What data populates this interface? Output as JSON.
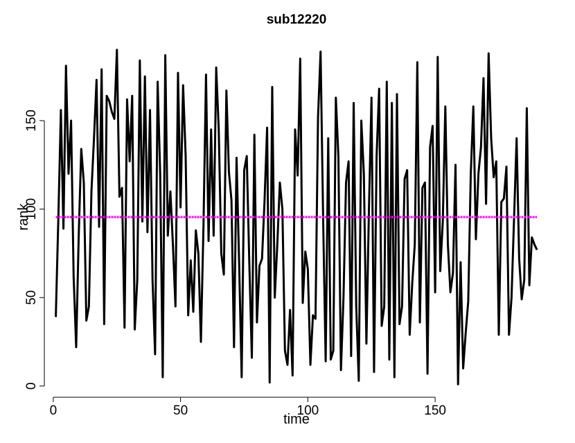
{
  "chart_data": {
    "type": "line",
    "title": "sub12220",
    "x_label": "time",
    "y_label": "rank",
    "x": [
      1,
      2,
      3,
      4,
      5,
      6,
      7,
      8,
      9,
      10,
      11,
      12,
      13,
      14,
      15,
      16,
      17,
      18,
      19,
      20,
      21,
      22,
      23,
      24,
      25,
      26,
      27,
      28,
      29,
      30,
      31,
      32,
      33,
      34,
      35,
      36,
      37,
      38,
      39,
      40,
      41,
      42,
      43,
      44,
      45,
      46,
      47,
      48,
      49,
      50,
      51,
      52,
      53,
      54,
      55,
      56,
      57,
      58,
      59,
      60,
      61,
      62,
      63,
      64,
      65,
      66,
      67,
      68,
      69,
      70,
      71,
      72,
      73,
      74,
      75,
      76,
      77,
      78,
      79,
      80,
      81,
      82,
      83,
      84,
      85,
      86,
      87,
      88,
      89,
      90,
      91,
      92,
      93,
      94,
      95,
      96,
      97,
      98,
      99,
      100,
      101,
      102,
      103,
      104,
      105,
      106,
      107,
      108,
      109,
      110,
      111,
      112,
      113,
      114,
      115,
      116,
      117,
      118,
      119,
      120,
      121,
      122,
      123,
      124,
      125,
      126,
      127,
      128,
      129,
      130,
      131,
      132,
      133,
      134,
      135,
      136,
      137,
      138,
      139,
      140,
      141,
      142,
      143,
      144,
      145,
      146,
      147,
      148,
      149,
      150,
      151,
      152,
      153,
      154,
      155,
      156,
      157,
      158,
      159,
      160,
      161,
      162,
      163,
      164,
      165,
      166,
      167,
      168,
      169,
      170,
      171,
      172,
      173,
      174,
      175,
      176,
      177,
      178,
      179,
      180,
      181,
      182,
      183,
      184,
      185,
      186,
      187,
      188,
      189,
      190
    ],
    "series": [
      {
        "name": "rank",
        "color": "#000000",
        "values": [
          39,
          95,
          156,
          89,
          181,
          120,
          150,
          62,
          22,
          85,
          134,
          115,
          37,
          45,
          110,
          140,
          173,
          90,
          179,
          35,
          164,
          161,
          155,
          151,
          190,
          107,
          112,
          33,
          162,
          127,
          164,
          32,
          60,
          184,
          93,
          175,
          87,
          156,
          60,
          18,
          172,
          120,
          5,
          187,
          85,
          110,
          80,
          45,
          177,
          101,
          170,
          130,
          40,
          71,
          42,
          88,
          75,
          25,
          90,
          176,
          82,
          145,
          85,
          180,
          145,
          75,
          63,
          167,
          121,
          105,
          22,
          129,
          70,
          5,
          122,
          130,
          70,
          16,
          142,
          36,
          68,
          72,
          105,
          146,
          2,
          169,
          50,
          80,
          115,
          100,
          20,
          12,
          43,
          6,
          145,
          119,
          185,
          47,
          76,
          66,
          12,
          40,
          38,
          152,
          189,
          95,
          14,
          140,
          15,
          20,
          163,
          130,
          9,
          50,
          115,
          127,
          17,
          160,
          45,
          3,
          150,
          120,
          24,
          100,
          163,
          8,
          130,
          168,
          34,
          45,
          172,
          15,
          160,
          5,
          165,
          35,
          45,
          117,
          122,
          29,
          58,
          80,
          183,
          36,
          112,
          115,
          7,
          135,
          147,
          53,
          186,
          65,
          93,
          158,
          80,
          53,
          64,
          125,
          1,
          70,
          10,
          30,
          48,
          120,
          158,
          83,
          120,
          135,
          174,
          103,
          188,
          140,
          118,
          127,
          29,
          104,
          106,
          124,
          29,
          50,
          95,
          140,
          72,
          49,
          60,
          157,
          57,
          84,
          80,
          77
        ]
      }
    ],
    "reference_line": {
      "value": 95.5,
      "color": "#ff00ff"
    },
    "xlim": [
      -1.6,
      191.6
    ],
    "ylim": [
      -2.8,
      197.8
    ],
    "xticks": [
      0,
      50,
      100,
      150
    ],
    "yticks": [
      0,
      50,
      100,
      150
    ]
  }
}
